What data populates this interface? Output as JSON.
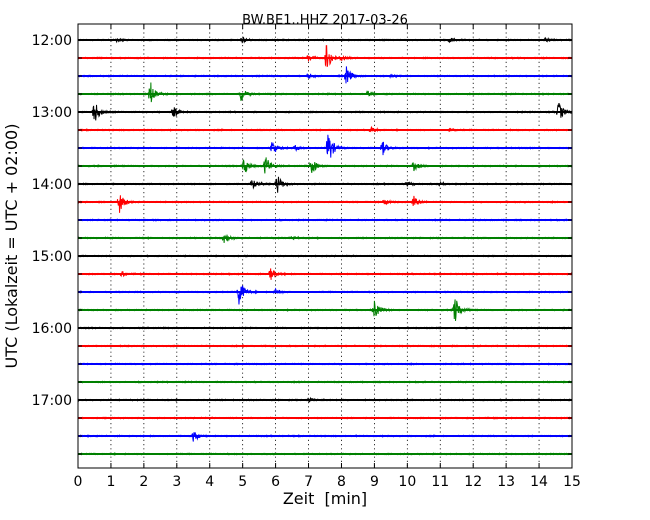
{
  "chart_data": {
    "type": "line",
    "title": "BW.BE1..HHZ 2017-03-26",
    "xlabel": "Zeit  [min]",
    "ylabel": "UTC (Lokalzeit = UTC + 02:00)",
    "xlim": [
      0,
      15
    ],
    "x_ticks": [
      "0",
      "1",
      "2",
      "3",
      "4",
      "5",
      "6",
      "7",
      "8",
      "9",
      "10",
      "11",
      "12",
      "13",
      "14",
      "15"
    ],
    "y_tick_labels": [
      "12:00",
      "13:00",
      "14:00",
      "15:00",
      "16:00",
      "17:00"
    ],
    "grid": "vertical dotted",
    "colors": [
      "#000000",
      "#ff0000",
      "#0000ff",
      "#008000"
    ],
    "traces": [
      {
        "start": "12:00",
        "color": "#000000",
        "events": [
          [
            1.2,
            0.2
          ],
          [
            5.0,
            0.3
          ],
          [
            11.3,
            0.25
          ],
          [
            14.2,
            0.2
          ]
        ]
      },
      {
        "start": "12:15",
        "color": "#ff0000",
        "events": [
          [
            7.55,
            1.6
          ],
          [
            7.0,
            0.4
          ],
          [
            8.0,
            0.3
          ]
        ]
      },
      {
        "start": "12:30",
        "color": "#0000ff",
        "events": [
          [
            8.15,
            1.1
          ],
          [
            7.0,
            0.3
          ],
          [
            9.5,
            0.2
          ]
        ]
      },
      {
        "start": "12:45",
        "color": "#008000",
        "events": [
          [
            2.2,
            1.5
          ],
          [
            4.95,
            0.8
          ],
          [
            8.8,
            0.3
          ]
        ]
      },
      {
        "start": "13:00",
        "color": "#000000",
        "events": [
          [
            0.5,
            1.4
          ],
          [
            2.9,
            0.6
          ],
          [
            14.6,
            1.1
          ]
        ]
      },
      {
        "start": "13:15",
        "color": "#ff0000",
        "events": [
          [
            8.9,
            0.3
          ],
          [
            11.3,
            0.2
          ]
        ]
      },
      {
        "start": "13:30",
        "color": "#0000ff",
        "events": [
          [
            7.6,
            2.0
          ],
          [
            5.9,
            0.9
          ],
          [
            9.25,
            0.8
          ],
          [
            6.6,
            0.3
          ]
        ]
      },
      {
        "start": "13:45",
        "color": "#008000",
        "events": [
          [
            5.05,
            1.0
          ],
          [
            5.7,
            1.2
          ],
          [
            7.1,
            0.9
          ],
          [
            10.2,
            0.5
          ]
        ]
      },
      {
        "start": "14:00",
        "color": "#000000",
        "events": [
          [
            6.05,
            1.1
          ],
          [
            5.3,
            0.6
          ],
          [
            10.0,
            0.2
          ],
          [
            11.0,
            0.2
          ]
        ]
      },
      {
        "start": "14:15",
        "color": "#ff0000",
        "events": [
          [
            1.25,
            1.3
          ],
          [
            10.2,
            0.7
          ],
          [
            9.3,
            0.3
          ]
        ]
      },
      {
        "start": "14:30",
        "color": "#0000ff",
        "events": []
      },
      {
        "start": "14:45",
        "color": "#008000",
        "events": [
          [
            4.45,
            0.7
          ],
          [
            6.5,
            0.2
          ]
        ]
      },
      {
        "start": "15:00",
        "color": "#000000",
        "events": []
      },
      {
        "start": "15:15",
        "color": "#ff0000",
        "events": [
          [
            1.35,
            0.3
          ],
          [
            5.85,
            0.7
          ]
        ]
      },
      {
        "start": "15:30",
        "color": "#0000ff",
        "events": [
          [
            4.9,
            1.6
          ],
          [
            6.0,
            0.3
          ]
        ]
      },
      {
        "start": "15:45",
        "color": "#008000",
        "events": [
          [
            9.0,
            1.0
          ],
          [
            11.45,
            1.6
          ]
        ]
      },
      {
        "start": "16:00",
        "color": "#000000",
        "events": []
      },
      {
        "start": "16:15",
        "color": "#ff0000",
        "events": []
      },
      {
        "start": "16:30",
        "color": "#0000ff",
        "events": []
      },
      {
        "start": "16:45",
        "color": "#008000",
        "events": []
      },
      {
        "start": "17:00",
        "color": "#000000",
        "events": [
          [
            7.0,
            0.25
          ]
        ]
      },
      {
        "start": "17:15",
        "color": "#ff0000",
        "events": []
      },
      {
        "start": "17:30",
        "color": "#0000ff",
        "events": [
          [
            3.5,
            0.7
          ]
        ]
      },
      {
        "start": "17:45",
        "color": "#008000",
        "events": []
      }
    ]
  }
}
